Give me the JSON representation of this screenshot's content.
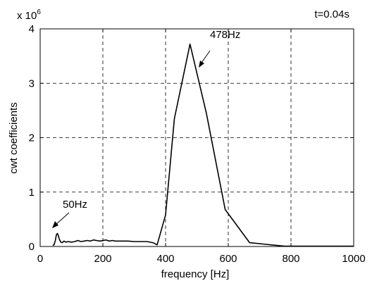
{
  "chart_data": {
    "type": "line",
    "title": "",
    "xlabel": "frequency [Hz]",
    "ylabel": "cwt coefficients",
    "xlim": [
      0,
      1000
    ],
    "ylim": [
      0,
      4
    ],
    "y_scale_note": {
      "base": "x 10",
      "exponent": "6"
    },
    "grid": true,
    "grid_style": "dashed",
    "x_ticks": [
      0,
      200,
      400,
      600,
      800,
      1000
    ],
    "x_tick_labels": [
      "0",
      "200",
      "400",
      "600",
      "800",
      "1000"
    ],
    "y_ticks": [
      0,
      1,
      2,
      3,
      4
    ],
    "y_tick_labels": [
      "0",
      "1",
      "2",
      "3",
      "4"
    ],
    "series": [
      {
        "color": "#000000",
        "x": [
          40,
          44,
          48,
          52,
          55,
          58,
          62,
          66,
          70,
          76,
          82,
          90,
          100,
          110,
          120,
          130,
          140,
          150,
          160,
          170,
          180,
          190,
          200,
          210,
          220,
          230,
          240,
          260,
          280,
          300,
          320,
          340,
          360,
          373,
          400,
          428,
          478,
          530,
          590,
          668,
          780,
          1000
        ],
        "y": [
          0.02,
          0.03,
          0.1,
          0.22,
          0.24,
          0.2,
          0.12,
          0.08,
          0.07,
          0.1,
          0.08,
          0.09,
          0.08,
          0.09,
          0.11,
          0.09,
          0.1,
          0.11,
          0.1,
          0.12,
          0.11,
          0.1,
          0.11,
          0.12,
          0.1,
          0.11,
          0.1,
          0.1,
          0.1,
          0.09,
          0.09,
          0.09,
          0.07,
          0.03,
          0.58,
          2.35,
          3.72,
          2.45,
          0.68,
          0.07,
          0.005,
          0.005
        ]
      }
    ],
    "annotations": [
      {
        "text": "478Hz",
        "x": 478,
        "y": 3.72
      },
      {
        "text": "50Hz",
        "x": 50,
        "y": 0.24
      },
      {
        "text": "t=0.04s"
      }
    ]
  }
}
